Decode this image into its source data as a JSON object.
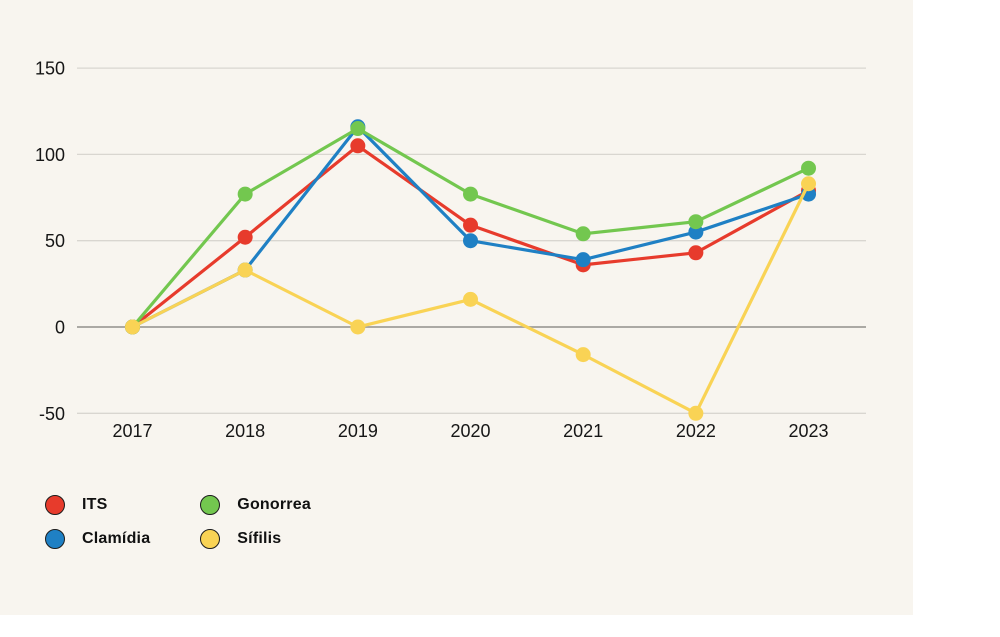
{
  "chart_data": {
    "type": "line",
    "categories": [
      "2017",
      "2018",
      "2019",
      "2020",
      "2021",
      "2022",
      "2023"
    ],
    "series": [
      {
        "name": "ITS",
        "color": "#e73b2c",
        "values": [
          0,
          52,
          105,
          59,
          36,
          43,
          79
        ]
      },
      {
        "name": "Clamídia",
        "color": "#1f80c4",
        "values": [
          0,
          33,
          116,
          50,
          39,
          55,
          77
        ]
      },
      {
        "name": "Gonorrea",
        "color": "#73c74f",
        "values": [
          0,
          77,
          115,
          77,
          54,
          61,
          92
        ]
      },
      {
        "name": "Sífilis",
        "color": "#f9d355",
        "values": [
          0,
          33,
          0,
          16,
          -16,
          -50,
          83
        ]
      }
    ],
    "yticks": [
      150,
      100,
      50,
      0,
      -50
    ],
    "ylim": [
      -60,
      170
    ],
    "grid": true,
    "legend_position": "bottom-left",
    "title": "",
    "xlabel": "",
    "ylabel": ""
  },
  "colors": {
    "page_background": "#ffffff",
    "panel_background": "#f8f5ef",
    "gridline": "#d9d6d0",
    "zero_line": "#aba9a4",
    "tick_text": "#161616"
  }
}
